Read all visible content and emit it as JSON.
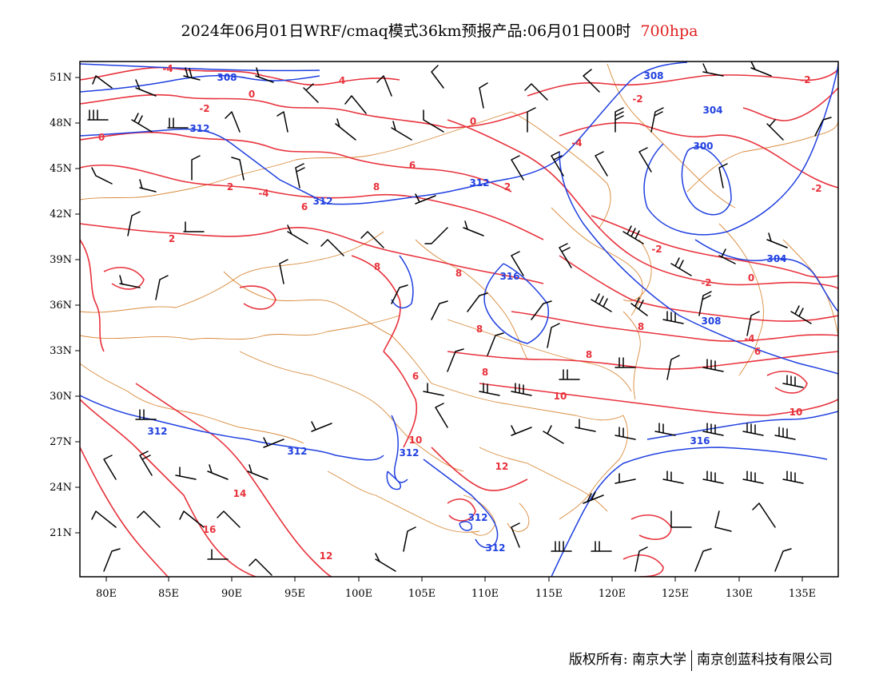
{
  "title": {
    "main": "2024年06月01日WRF/cmaq模式36km预报产品:06月01日00时",
    "level": "700hpa",
    "level_color": "#e02020"
  },
  "map": {
    "lat_labels": [
      "51N",
      "48N",
      "45N",
      "42N",
      "39N",
      "36N",
      "33N",
      "30N",
      "27N",
      "24N",
      "21N"
    ],
    "lon_labels": [
      "80E",
      "85E",
      "90E",
      "95E",
      "100E",
      "105E",
      "110E",
      "115E",
      "120E",
      "125E",
      "130E",
      "135E"
    ],
    "temperature_contour_labels": [
      "-4",
      "4",
      "0",
      "-2",
      "2",
      "-2",
      "0",
      "-4",
      "-2",
      "-2",
      "6",
      "8",
      "2",
      "-4",
      "6",
      "2",
      "-2",
      "8",
      "8",
      "10",
      "8",
      "0",
      "-2",
      "2",
      "8",
      "6",
      "8",
      "-4",
      "6",
      "8",
      "10",
      "10",
      "12",
      "14",
      "16",
      "12"
    ],
    "height_contour_labels": [
      "308",
      "312",
      "312",
      "312",
      "308",
      "304",
      "300",
      "304",
      "316",
      "308",
      "312",
      "312",
      "312",
      "312",
      "316",
      "312"
    ],
    "colors": {
      "temperature": "#e8323c",
      "height": "#2040e0",
      "border": "#d98a3a",
      "barb": "#000000"
    }
  },
  "copyright": {
    "left": "版权所有: 南京大学",
    "right": "南京创蓝科技有限公司"
  }
}
